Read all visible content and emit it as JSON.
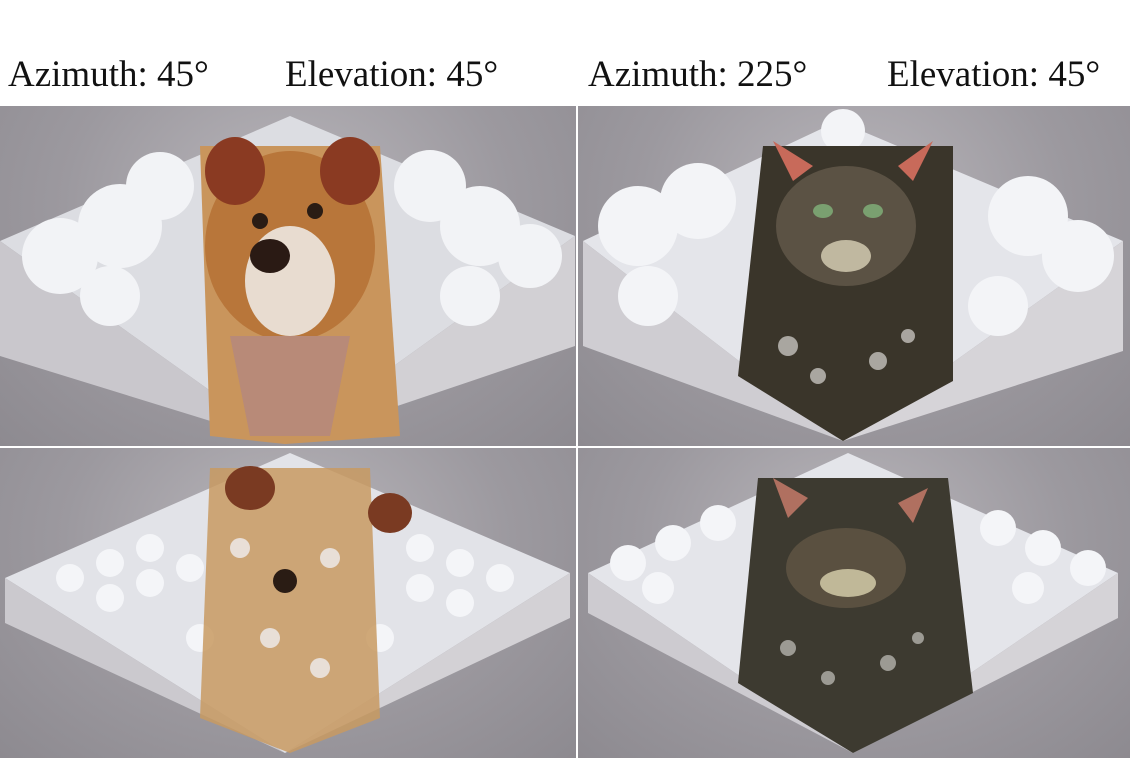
{
  "captions": {
    "left_azimuth": "Azimuth: 45°",
    "left_elevation": "Elevation: 45°",
    "right_azimuth": "Azimuth: 225°",
    "right_elevation": "Elevation: 45°"
  },
  "colors": {
    "table_gray": "#9c999f",
    "voxel_white": "#eef0f4",
    "dog_brown": "#b8763a",
    "cat_dark": "#3a352a"
  }
}
